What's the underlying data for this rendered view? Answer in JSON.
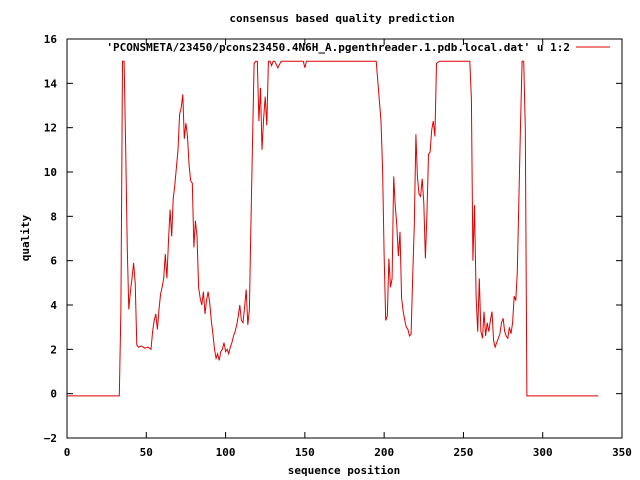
{
  "chart_data": {
    "type": "line",
    "title": "consensus based quality prediction",
    "xlabel": "sequence position",
    "ylabel": "quality",
    "xlim": [
      0,
      350
    ],
    "ylim": [
      -2,
      16
    ],
    "x_ticks": [
      0,
      50,
      100,
      150,
      200,
      250,
      300,
      350
    ],
    "y_ticks": [
      -2,
      0,
      2,
      4,
      6,
      8,
      10,
      12,
      14,
      16
    ],
    "x_tick_labels": [
      "0",
      "50",
      "100",
      "150",
      "200",
      "250",
      "300",
      "350"
    ],
    "y_tick_labels": [
      "−2",
      "0",
      "2",
      "4",
      "6",
      "8",
      "10",
      "12",
      "14",
      "16"
    ],
    "grid": false,
    "legend_position": "top-right",
    "colors": {
      "series": "#e00000",
      "axis": "#000000"
    },
    "series": [
      {
        "name": "'PCONSMETA/23450/pcons23450.4N6H_A.pgenthreader.1.pdb.local.dat' u 1:2",
        "points": [
          [
            0,
            -0.1
          ],
          [
            33,
            -0.1
          ],
          [
            34,
            3.8
          ],
          [
            35,
            15
          ],
          [
            36,
            15
          ],
          [
            37,
            11
          ],
          [
            38,
            6.5
          ],
          [
            39,
            3.8
          ],
          [
            40,
            4.6
          ],
          [
            41,
            5.2
          ],
          [
            42,
            5.9
          ],
          [
            43,
            5.0
          ],
          [
            44,
            2.2
          ],
          [
            45,
            2.1
          ],
          [
            47,
            2.15
          ],
          [
            49,
            2.05
          ],
          [
            51,
            2.1
          ],
          [
            53,
            2.0
          ],
          [
            54,
            2.8
          ],
          [
            55,
            3.3
          ],
          [
            56,
            3.6
          ],
          [
            57,
            2.9
          ],
          [
            58,
            3.8
          ],
          [
            59,
            4.5
          ],
          [
            60,
            4.8
          ],
          [
            61,
            5.2
          ],
          [
            62,
            6.3
          ],
          [
            63,
            5.2
          ],
          [
            64,
            6.9
          ],
          [
            65,
            8.3
          ],
          [
            66,
            7.1
          ],
          [
            67,
            8.8
          ],
          [
            68,
            9.4
          ],
          [
            69,
            10.2
          ],
          [
            70,
            11.0
          ],
          [
            71,
            12.6
          ],
          [
            72,
            12.9
          ],
          [
            73,
            13.5
          ],
          [
            74,
            11.5
          ],
          [
            75,
            12.2
          ],
          [
            76,
            11.6
          ],
          [
            77,
            10.3
          ],
          [
            78,
            9.6
          ],
          [
            79,
            9.5
          ],
          [
            80,
            6.6
          ],
          [
            81,
            7.8
          ],
          [
            82,
            7.1
          ],
          [
            83,
            4.8
          ],
          [
            84,
            4.3
          ],
          [
            85,
            4.0
          ],
          [
            86,
            4.6
          ],
          [
            87,
            3.6
          ],
          [
            88,
            4.2
          ],
          [
            89,
            4.6
          ],
          [
            90,
            4.1
          ],
          [
            91,
            3.3
          ],
          [
            92,
            2.7
          ],
          [
            93,
            2.0
          ],
          [
            94,
            1.6
          ],
          [
            95,
            1.8
          ],
          [
            96,
            1.5
          ],
          [
            97,
            1.9
          ],
          [
            98,
            2.0
          ],
          [
            99,
            2.3
          ],
          [
            100,
            1.9
          ],
          [
            101,
            2.0
          ],
          [
            102,
            1.8
          ],
          [
            103,
            2.1
          ],
          [
            104,
            2.3
          ],
          [
            105,
            2.6
          ],
          [
            106,
            2.8
          ],
          [
            107,
            3.1
          ],
          [
            108,
            3.5
          ],
          [
            109,
            4.0
          ],
          [
            110,
            3.3
          ],
          [
            111,
            3.2
          ],
          [
            112,
            3.9
          ],
          [
            113,
            4.7
          ],
          [
            114,
            3.1
          ],
          [
            115,
            3.8
          ],
          [
            116,
            7.6
          ],
          [
            117,
            11.3
          ],
          [
            118,
            14.9
          ],
          [
            119,
            15
          ],
          [
            120,
            15
          ],
          [
            121,
            12.3
          ],
          [
            122,
            13.8
          ],
          [
            123,
            11.0
          ],
          [
            124,
            12.4
          ],
          [
            125,
            13.4
          ],
          [
            126,
            12.1
          ],
          [
            127,
            15
          ],
          [
            128,
            15
          ],
          [
            129,
            14.8
          ],
          [
            130,
            15
          ],
          [
            131,
            15
          ],
          [
            133,
            14.7
          ],
          [
            135,
            15
          ],
          [
            149,
            15
          ],
          [
            150,
            14.7
          ],
          [
            151,
            15
          ],
          [
            195,
            15
          ],
          [
            197,
            13.2
          ],
          [
            198,
            12.3
          ],
          [
            199,
            10.1
          ],
          [
            200,
            6.3
          ],
          [
            201,
            3.3
          ],
          [
            202,
            3.5
          ],
          [
            203,
            6.1
          ],
          [
            204,
            4.8
          ],
          [
            205,
            5.2
          ],
          [
            206,
            9.8
          ],
          [
            207,
            8.5
          ],
          [
            208,
            7.6
          ],
          [
            209,
            6.2
          ],
          [
            210,
            7.3
          ],
          [
            211,
            4.3
          ],
          [
            212,
            3.7
          ],
          [
            213,
            3.3
          ],
          [
            214,
            3.0
          ],
          [
            215,
            2.9
          ],
          [
            216,
            2.6
          ],
          [
            217,
            2.7
          ],
          [
            218,
            5.3
          ],
          [
            219,
            7.6
          ],
          [
            220,
            11.7
          ],
          [
            221,
            9.8
          ],
          [
            222,
            9.0
          ],
          [
            223,
            8.9
          ],
          [
            224,
            9.7
          ],
          [
            225,
            8.6
          ],
          [
            226,
            6.1
          ],
          [
            227,
            8.2
          ],
          [
            228,
            10.8
          ],
          [
            229,
            10.9
          ],
          [
            230,
            11.9
          ],
          [
            231,
            12.3
          ],
          [
            232,
            11.6
          ],
          [
            233,
            14.9
          ],
          [
            235,
            15
          ],
          [
            254,
            15
          ],
          [
            255,
            13.3
          ],
          [
            256,
            6.0
          ],
          [
            257,
            8.5
          ],
          [
            258,
            4.4
          ],
          [
            259,
            2.8
          ],
          [
            260,
            5.2
          ],
          [
            261,
            2.8
          ],
          [
            262,
            2.5
          ],
          [
            263,
            3.7
          ],
          [
            264,
            2.6
          ],
          [
            265,
            3.2
          ],
          [
            266,
            2.8
          ],
          [
            267,
            3.3
          ],
          [
            268,
            3.7
          ],
          [
            269,
            2.4
          ],
          [
            270,
            2.1
          ],
          [
            271,
            2.3
          ],
          [
            272,
            2.5
          ],
          [
            273,
            2.7
          ],
          [
            274,
            3.2
          ],
          [
            275,
            3.4
          ],
          [
            276,
            2.8
          ],
          [
            277,
            2.6
          ],
          [
            278,
            2.5
          ],
          [
            279,
            3.0
          ],
          [
            280,
            2.7
          ],
          [
            281,
            3.2
          ],
          [
            282,
            4.4
          ],
          [
            283,
            4.2
          ],
          [
            284,
            5.5
          ],
          [
            285,
            8.8
          ],
          [
            286,
            12.1
          ],
          [
            287,
            15
          ],
          [
            288,
            15
          ],
          [
            289,
            12.0
          ],
          [
            290,
            -0.1
          ],
          [
            300,
            -0.1
          ],
          [
            335,
            -0.1
          ]
        ]
      }
    ]
  }
}
